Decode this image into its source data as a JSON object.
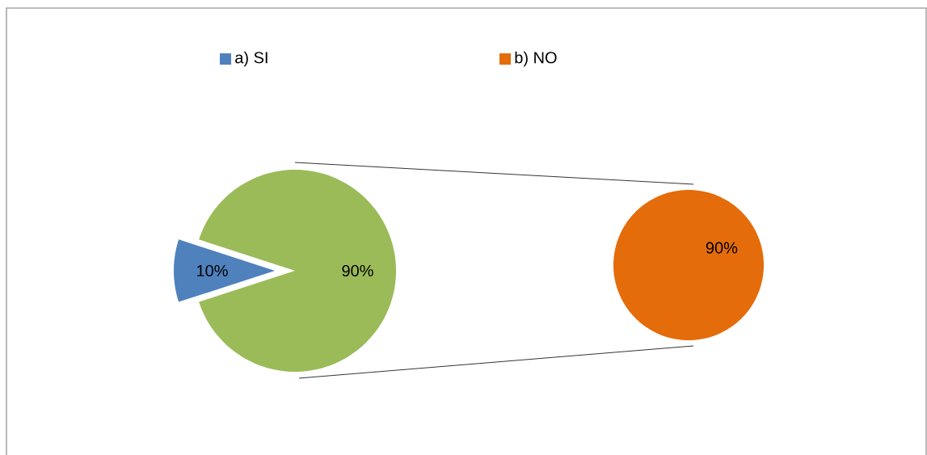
{
  "chart_data": [
    {
      "type": "pie",
      "categories": [
        "a) SI",
        null
      ],
      "values": [
        10,
        90
      ],
      "colors": [
        "#4f81bd",
        "#9bbb59"
      ],
      "value_labels": [
        "10%",
        "90%"
      ],
      "legend": "top"
    },
    {
      "type": "pie",
      "categories": [
        "b) NO"
      ],
      "values": [
        90
      ],
      "colors": [
        "#e46c0a"
      ],
      "value_labels": [
        "90%"
      ],
      "legend": "top"
    }
  ]
}
